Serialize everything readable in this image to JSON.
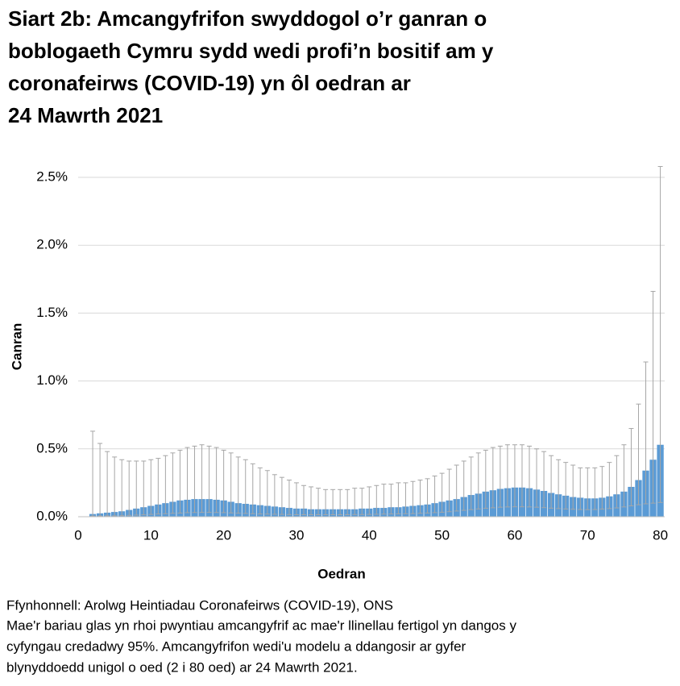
{
  "chart_data": {
    "type": "bar",
    "title": [
      "Siart 2b: Amcangyfrifon swyddogol o’r ganran o",
      "boblogaeth Cymru sydd wedi profi’n bositif am y",
      "coronafeirws (COVID-19) yn ôl oedran ar",
      "24 Mawrth 2021"
    ],
    "x_label": "Oedran",
    "y_label": "Canran",
    "x": [
      2,
      3,
      4,
      5,
      6,
      7,
      8,
      9,
      10,
      11,
      12,
      13,
      14,
      15,
      16,
      17,
      18,
      19,
      20,
      21,
      22,
      23,
      24,
      25,
      26,
      27,
      28,
      29,
      30,
      31,
      32,
      33,
      34,
      35,
      36,
      37,
      38,
      39,
      40,
      41,
      42,
      43,
      44,
      45,
      46,
      47,
      48,
      49,
      50,
      51,
      52,
      53,
      54,
      55,
      56,
      57,
      58,
      59,
      60,
      61,
      62,
      63,
      64,
      65,
      66,
      67,
      68,
      69,
      70,
      71,
      72,
      73,
      74,
      75,
      76,
      77,
      78,
      79,
      80
    ],
    "values": [
      0.02,
      0.025,
      0.03,
      0.035,
      0.04,
      0.05,
      0.06,
      0.07,
      0.08,
      0.09,
      0.1,
      0.11,
      0.12,
      0.125,
      0.13,
      0.13,
      0.13,
      0.125,
      0.12,
      0.11,
      0.1,
      0.095,
      0.09,
      0.085,
      0.08,
      0.075,
      0.07,
      0.065,
      0.06,
      0.06,
      0.055,
      0.055,
      0.055,
      0.055,
      0.055,
      0.055,
      0.055,
      0.06,
      0.06,
      0.065,
      0.065,
      0.07,
      0.07,
      0.075,
      0.08,
      0.085,
      0.09,
      0.1,
      0.11,
      0.12,
      0.13,
      0.145,
      0.16,
      0.17,
      0.185,
      0.195,
      0.205,
      0.21,
      0.215,
      0.215,
      0.21,
      0.2,
      0.19,
      0.175,
      0.165,
      0.155,
      0.145,
      0.14,
      0.135,
      0.135,
      0.14,
      0.15,
      0.165,
      0.185,
      0.22,
      0.27,
      0.34,
      0.42,
      0.53
    ],
    "lower": [
      0.005,
      0.005,
      0.006,
      0.007,
      0.008,
      0.01,
      0.012,
      0.014,
      0.017,
      0.02,
      0.022,
      0.025,
      0.027,
      0.03,
      0.031,
      0.032,
      0.032,
      0.031,
      0.03,
      0.028,
      0.026,
      0.024,
      0.022,
      0.02,
      0.019,
      0.018,
      0.017,
      0.016,
      0.015,
      0.015,
      0.015,
      0.015,
      0.015,
      0.015,
      0.015,
      0.015,
      0.016,
      0.016,
      0.017,
      0.018,
      0.019,
      0.02,
      0.021,
      0.022,
      0.023,
      0.025,
      0.027,
      0.03,
      0.033,
      0.037,
      0.042,
      0.047,
      0.052,
      0.057,
      0.062,
      0.066,
      0.07,
      0.072,
      0.073,
      0.073,
      0.072,
      0.07,
      0.067,
      0.063,
      0.06,
      0.057,
      0.055,
      0.053,
      0.052,
      0.053,
      0.056,
      0.06,
      0.065,
      0.072,
      0.08,
      0.088,
      0.095,
      0.1,
      0.105
    ],
    "upper": [
      0.63,
      0.54,
      0.48,
      0.44,
      0.42,
      0.41,
      0.41,
      0.41,
      0.42,
      0.43,
      0.45,
      0.47,
      0.49,
      0.51,
      0.52,
      0.53,
      0.52,
      0.51,
      0.49,
      0.47,
      0.44,
      0.42,
      0.39,
      0.36,
      0.34,
      0.31,
      0.29,
      0.27,
      0.25,
      0.23,
      0.22,
      0.21,
      0.2,
      0.2,
      0.2,
      0.2,
      0.21,
      0.21,
      0.22,
      0.23,
      0.24,
      0.24,
      0.25,
      0.25,
      0.26,
      0.27,
      0.28,
      0.3,
      0.32,
      0.35,
      0.38,
      0.41,
      0.44,
      0.47,
      0.49,
      0.51,
      0.52,
      0.53,
      0.53,
      0.53,
      0.52,
      0.5,
      0.48,
      0.45,
      0.42,
      0.4,
      0.38,
      0.36,
      0.36,
      0.36,
      0.37,
      0.4,
      0.45,
      0.53,
      0.65,
      0.83,
      1.14,
      1.66,
      2.58
    ],
    "color": "#5b9bd5",
    "error_color": "#a6a6a6",
    "xlim": [
      0,
      80.6
    ],
    "xticks": [
      0,
      10,
      20,
      30,
      40,
      50,
      60,
      70,
      80
    ],
    "ylim": [
      0,
      2.5
    ],
    "yticks": [
      {
        "value": 0,
        "label": "0.0%"
      },
      {
        "value": 0.5,
        "label": "0.5%"
      },
      {
        "value": 1,
        "label": "1.0%"
      },
      {
        "value": 1.5,
        "label": "1.5%"
      },
      {
        "value": 2,
        "label": "2.0%"
      },
      {
        "value": 2.5,
        "label": "2.5%"
      }
    ],
    "grid": true,
    "source": "Ffynhonnell: Arolwg Heintiadau Coronafeirws (COVID-19), ONS",
    "notes": [
      "Mae'r bariau glas yn rhoi pwyntiau amcangyfrif ac mae'r llinellau fertigol yn dangos y",
      "cyfyngau credadwy 95%. Amcangyfrifon wedi'u modelu a ddangosir ar gyfer",
      "blynyddoedd unigol o oed (2 i 80 oed) ar 24 Mawrth 2021."
    ]
  }
}
